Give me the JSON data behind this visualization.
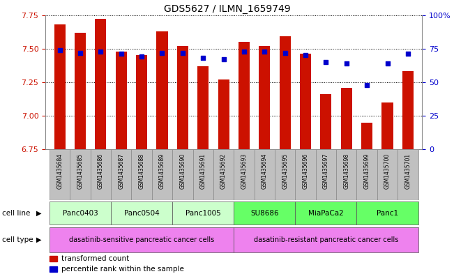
{
  "title": "GDS5627 / ILMN_1659749",
  "samples": [
    "GSM1435684",
    "GSM1435685",
    "GSM1435686",
    "GSM1435687",
    "GSM1435688",
    "GSM1435689",
    "GSM1435690",
    "GSM1435691",
    "GSM1435692",
    "GSM1435693",
    "GSM1435694",
    "GSM1435695",
    "GSM1435696",
    "GSM1435697",
    "GSM1435698",
    "GSM1435699",
    "GSM1435700",
    "GSM1435701"
  ],
  "transformed_count": [
    7.68,
    7.62,
    7.72,
    7.48,
    7.45,
    7.63,
    7.52,
    7.37,
    7.27,
    7.55,
    7.52,
    7.59,
    7.46,
    7.16,
    7.21,
    6.95,
    7.1,
    7.33
  ],
  "percentile_rank": [
    74,
    72,
    73,
    71,
    69,
    72,
    72,
    68,
    67,
    73,
    73,
    72,
    70,
    65,
    64,
    48,
    64,
    71
  ],
  "ylim_left": [
    6.75,
    7.75
  ],
  "ylim_right": [
    0,
    100
  ],
  "yticks_left": [
    6.75,
    7.0,
    7.25,
    7.5,
    7.75
  ],
  "yticks_right": [
    0,
    25,
    50,
    75,
    100
  ],
  "ytick_labels_right": [
    "0",
    "25",
    "50",
    "75",
    "100%"
  ],
  "bar_color": "#cc1100",
  "dot_color": "#0000cc",
  "cell_lines": [
    {
      "name": "Panc0403",
      "start": 0,
      "end": 3,
      "color": "#ccffcc"
    },
    {
      "name": "Panc0504",
      "start": 3,
      "end": 6,
      "color": "#ccffcc"
    },
    {
      "name": "Panc1005",
      "start": 6,
      "end": 9,
      "color": "#ccffcc"
    },
    {
      "name": "SU8686",
      "start": 9,
      "end": 12,
      "color": "#66ff66"
    },
    {
      "name": "MiaPaCa2",
      "start": 12,
      "end": 15,
      "color": "#66ff66"
    },
    {
      "name": "Panc1",
      "start": 15,
      "end": 18,
      "color": "#66ff66"
    }
  ],
  "cell_type_groups": [
    {
      "name": "dasatinib-sensitive pancreatic cancer cells",
      "start": 0,
      "end": 9,
      "color": "#ee82ee"
    },
    {
      "name": "dasatinib-resistant pancreatic cancer cells",
      "start": 9,
      "end": 18,
      "color": "#ee82ee"
    }
  ],
  "legend_items": [
    {
      "color": "#cc1100",
      "label": "transformed count"
    },
    {
      "color": "#0000cc",
      "label": "percentile rank within the sample"
    }
  ],
  "tick_color_left": "#cc1100",
  "tick_color_right": "#0000cc",
  "sample_bg_color": "#c0c0c0",
  "bar_width": 0.55
}
